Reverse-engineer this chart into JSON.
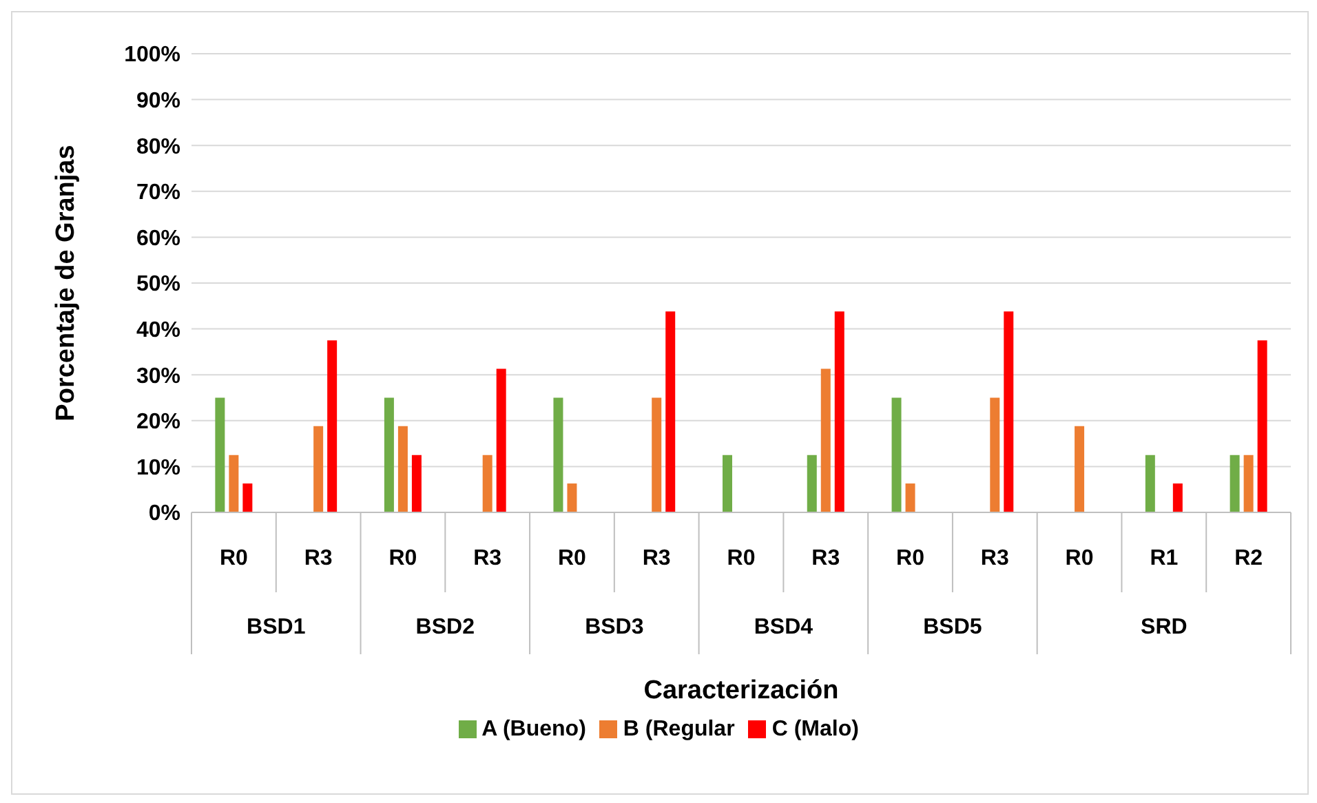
{
  "chart_data": {
    "type": "bar",
    "xlabel": "Caracterización",
    "ylabel": "Porcentaje de Granjas",
    "categories": [
      "R0",
      "R3",
      "R0",
      "R3",
      "R0",
      "R3",
      "R0",
      "R3",
      "R0",
      "R3",
      "R0",
      "R1",
      "R2"
    ],
    "annotations": [
      "BSD1",
      "BSD2",
      "BSD3",
      "BSD4",
      "BSD5",
      "SRD"
    ],
    "series": [
      {
        "name": "A (Bueno)",
        "color": "#70ad47",
        "values": [
          25,
          0,
          25,
          0,
          25,
          0,
          12.5,
          12.5,
          25,
          0,
          0,
          12.5,
          12.5
        ]
      },
      {
        "name": "B (Regular",
        "color": "#ed7d31",
        "values": [
          12.5,
          18.8,
          18.8,
          12.5,
          6.3,
          25,
          0,
          31.3,
          6.3,
          25,
          18.8,
          0,
          12.5
        ]
      },
      {
        "name": "C (Malo)",
        "color": "#ff0000",
        "values": [
          6.3,
          37.5,
          12.5,
          31.3,
          0,
          43.8,
          0,
          43.8,
          0,
          43.8,
          0,
          6.3,
          37.5
        ]
      }
    ],
    "ylim": [
      0,
      100
    ],
    "yticks": [
      {
        "value": 0,
        "label": "0%"
      },
      {
        "value": 10,
        "label": "10%"
      },
      {
        "value": 20,
        "label": "20%"
      },
      {
        "value": 30,
        "label": "30%"
      },
      {
        "value": 40,
        "label": "40%"
      },
      {
        "value": 50,
        "label": "50%"
      },
      {
        "value": 60,
        "label": "60%"
      },
      {
        "value": 70,
        "label": "70%"
      },
      {
        "value": 80,
        "label": "80%"
      },
      {
        "value": 90,
        "label": "90%"
      },
      {
        "value": 100,
        "label": "100%"
      }
    ],
    "grid": "y",
    "legend": "bottom"
  }
}
